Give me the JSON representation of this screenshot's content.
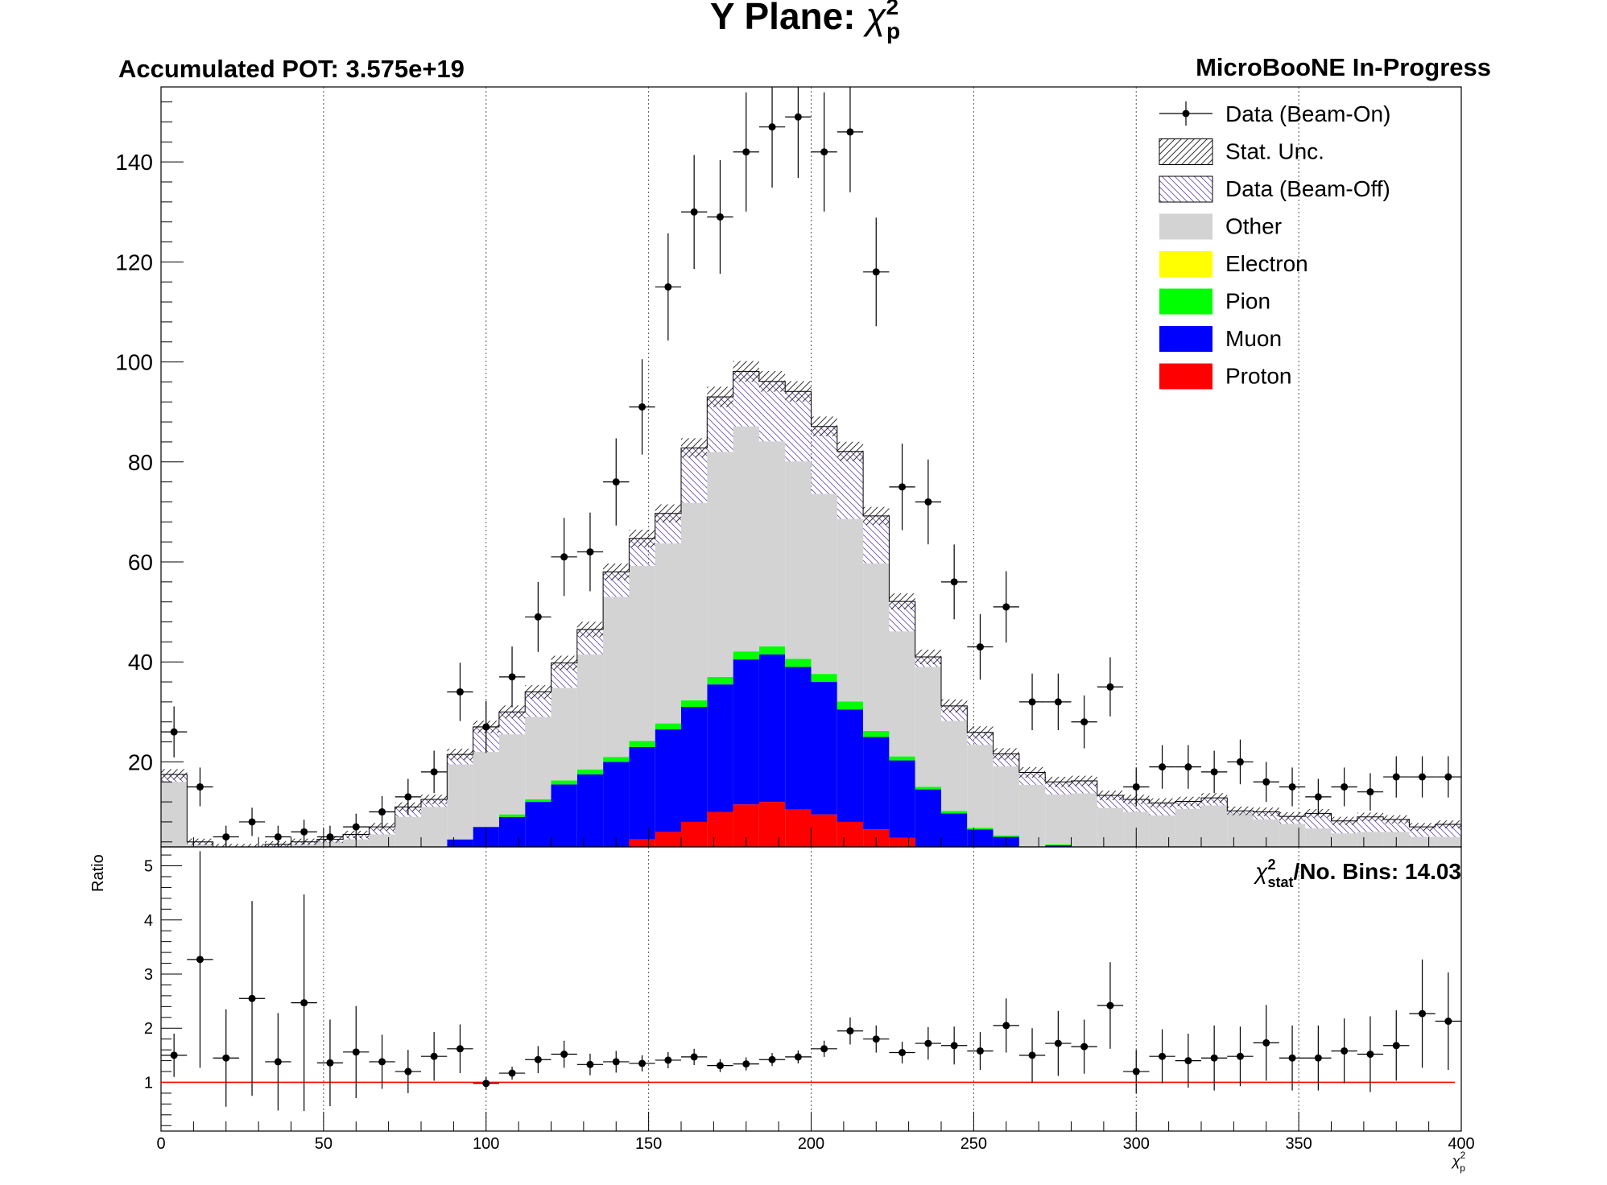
{
  "chart_data": {
    "type": "bar",
    "title_main": "Y Plane: ",
    "title_var": "χ",
    "title_sup": "2",
    "title_sub": "p",
    "pot_label": "Accumulated POT: 3.575e+19",
    "collab_label": "MicroBooNE In-Progress",
    "chi2_sym": "χ",
    "chi2_sup": "2",
    "chi2_sub": "stat",
    "chi2_text": "/No. Bins: 14.03",
    "ylabel_ratio": "Ratio",
    "xlabel_sym": "χ",
    "xlabel_sup": "2",
    "xlabel_sub": "p",
    "xlim": [
      0,
      400
    ],
    "ylim": [
      3,
      155
    ],
    "ratio_ylim": [
      0.1,
      5.35
    ],
    "x_ticks": [
      "0",
      "50",
      "100",
      "150",
      "200",
      "250",
      "300",
      "350",
      "400"
    ],
    "x_tick_values": [
      0,
      50,
      100,
      150,
      200,
      250,
      300,
      350,
      400
    ],
    "y_ticks": [
      "20",
      "40",
      "60",
      "80",
      "100",
      "120",
      "140"
    ],
    "y_tick_values": [
      20,
      40,
      60,
      80,
      100,
      120,
      140
    ],
    "ratio_ticks": [
      "1",
      "2",
      "3",
      "4",
      "5"
    ],
    "ratio_tick_values": [
      1,
      2,
      3,
      4,
      5
    ],
    "bin_width": 8,
    "bin_lows": [
      0,
      8,
      16,
      24,
      32,
      40,
      48,
      56,
      64,
      72,
      80,
      88,
      96,
      104,
      112,
      120,
      128,
      136,
      144,
      152,
      160,
      168,
      176,
      184,
      192,
      200,
      208,
      216,
      224,
      232,
      240,
      248,
      256,
      264,
      272,
      280,
      288,
      296,
      304,
      312,
      320,
      328,
      336,
      344,
      352,
      360,
      368,
      376,
      384,
      392
    ],
    "legend": [
      {
        "label": "Data (Beam-On)",
        "style": "marker"
      },
      {
        "label": "Stat. Unc.",
        "style": "hatch-dark"
      },
      {
        "label": "Data (Beam-Off)",
        "style": "hatch-purple"
      },
      {
        "label": "Other",
        "style": "fill",
        "color": "#d3d3d3"
      },
      {
        "label": "Electron",
        "style": "fill",
        "color": "#ffff00"
      },
      {
        "label": "Pion",
        "style": "fill",
        "color": "#00ff00"
      },
      {
        "label": "Muon",
        "style": "fill",
        "color": "#0000ff"
      },
      {
        "label": "Proton",
        "style": "fill",
        "color": "#ff0000"
      }
    ],
    "series": [
      {
        "name": "Proton",
        "color": "#ff0000",
        "values": [
          0,
          0,
          0,
          0,
          0,
          0,
          0,
          0,
          0,
          0,
          0,
          0,
          0,
          0,
          0.5,
          1,
          1.5,
          2.5,
          4.5,
          6,
          8,
          10,
          11.5,
          12,
          10.5,
          9.5,
          8,
          6.5,
          4.8,
          3,
          1.2,
          0.3,
          0,
          0,
          0,
          0,
          0,
          0,
          0,
          0,
          0,
          0,
          0,
          0,
          0,
          0,
          0,
          0,
          0,
          0
        ]
      },
      {
        "name": "Muon",
        "color": "#0000ff",
        "values": [
          0,
          0,
          0,
          0,
          0,
          0,
          0,
          0,
          0,
          0.5,
          1.5,
          4.5,
          7,
          9,
          11.5,
          14.5,
          16,
          17.5,
          18.5,
          20.5,
          23,
          25.5,
          29,
          29.5,
          28.5,
          26.5,
          22.5,
          18.5,
          15.5,
          11.5,
          8.5,
          6.2,
          5,
          2.8,
          3.3,
          2.5,
          1.8,
          0.6,
          0.3,
          0.4,
          0.1,
          0.4,
          0.3,
          0,
          0,
          0,
          0,
          0,
          0,
          0
        ]
      },
      {
        "name": "Pion",
        "color": "#00ff00",
        "values": [
          0,
          0,
          0,
          0,
          0,
          0,
          0,
          0,
          0,
          0,
          0,
          0,
          0,
          0.5,
          0.5,
          0.8,
          1,
          1,
          1.2,
          1.2,
          1.3,
          1.5,
          1.6,
          1.6,
          1.6,
          1.6,
          1.6,
          1.2,
          0.8,
          0.5,
          0.5,
          0.3,
          0.3,
          0.2,
          0.2,
          0.2,
          0.2,
          0.3,
          0.2,
          0.2,
          0.2,
          0.3,
          0.2,
          0.2,
          0,
          0,
          0,
          0,
          0,
          0
        ]
      },
      {
        "name": "Electron",
        "color": "#ffff00",
        "values": [
          0,
          0,
          0,
          0,
          0,
          0,
          0,
          0,
          0,
          0,
          0,
          0,
          0,
          0,
          0,
          0,
          0,
          0,
          0,
          0,
          0,
          0,
          0,
          0,
          0,
          0,
          0,
          0,
          0,
          0,
          0,
          0,
          0,
          0,
          0,
          0,
          0,
          0,
          0,
          0,
          0,
          0,
          0,
          0,
          0,
          0,
          0,
          0,
          0,
          0
        ]
      },
      {
        "name": "Other",
        "color": "#d3d3d3",
        "values": [
          16,
          3.5,
          2.5,
          2.5,
          3,
          3.5,
          4,
          4.5,
          5.5,
          8.5,
          9.5,
          15,
          15,
          16,
          16.5,
          18.5,
          23,
          32,
          35,
          36,
          39.5,
          45,
          45,
          41,
          39.5,
          36,
          36.5,
          33.5,
          25,
          24,
          18,
          16.6,
          13.8,
          12.4,
          10,
          11,
          8.8,
          9.1,
          8.8,
          10,
          11,
          9,
          8,
          7.4,
          6.7,
          5.7,
          6,
          6,
          5,
          5
        ]
      },
      {
        "name": "Data (Beam-Off)",
        "color": "#a080d0",
        "values": [
          1.5,
          0.5,
          0.5,
          0.5,
          0.5,
          0.5,
          0.5,
          1,
          1.5,
          2,
          1.5,
          2,
          5,
          4.5,
          5,
          5,
          5,
          5,
          5.5,
          6,
          11,
          11,
          11,
          12,
          14,
          13.5,
          13.5,
          9.5,
          6,
          2,
          3,
          2.5,
          2.5,
          2.5,
          2.5,
          2.5,
          2.5,
          2.5,
          2.5,
          1.5,
          1.5,
          0.5,
          1.5,
          1.5,
          3,
          2.5,
          3,
          2.5,
          2,
          2.5
        ]
      }
    ],
    "data_on": {
      "name": "Data (Beam-On)",
      "values": [
        26,
        15,
        5,
        8,
        5,
        6,
        5,
        7,
        10,
        13,
        18,
        34,
        27,
        37,
        49,
        61,
        62,
        76,
        91,
        115,
        130,
        129,
        142,
        147,
        149,
        142,
        146,
        118,
        75,
        72,
        56,
        43,
        51,
        32,
        32,
        28,
        35,
        15,
        19,
        19,
        18,
        20,
        16,
        15,
        13,
        15,
        14,
        17,
        17,
        17
      ]
    },
    "ratio": {
      "name": "Ratio",
      "reference": 1,
      "values": [
        1.5,
        3.27,
        1.45,
        2.55,
        1.38,
        2.47,
        1.36,
        1.56,
        1.38,
        1.2,
        1.48,
        1.62,
        0.98,
        1.17,
        1.42,
        1.52,
        1.33,
        1.38,
        1.35,
        1.41,
        1.47,
        1.31,
        1.34,
        1.42,
        1.47,
        1.62,
        1.95,
        1.8,
        1.55,
        1.72,
        1.68,
        1.58,
        2.05,
        1.5,
        1.72,
        1.66,
        2.42,
        1.2,
        1.48,
        1.4,
        1.45,
        1.48,
        1.73,
        1.45,
        1.45,
        1.58,
        1.52,
        1.68,
        2.27,
        2.13
      ],
      "errors": [
        0.4,
        2.0,
        0.9,
        1.8,
        0.9,
        2.0,
        0.8,
        0.85,
        0.5,
        0.4,
        0.45,
        0.45,
        0.12,
        0.12,
        0.25,
        0.25,
        0.2,
        0.2,
        0.15,
        0.15,
        0.15,
        0.12,
        0.12,
        0.12,
        0.12,
        0.15,
        0.25,
        0.25,
        0.2,
        0.3,
        0.35,
        0.35,
        0.5,
        0.5,
        0.6,
        0.5,
        0.8,
        0.4,
        0.5,
        0.5,
        0.6,
        0.55,
        0.7,
        0.6,
        0.6,
        0.6,
        0.7,
        0.65,
        1.0,
        0.9
      ]
    }
  }
}
